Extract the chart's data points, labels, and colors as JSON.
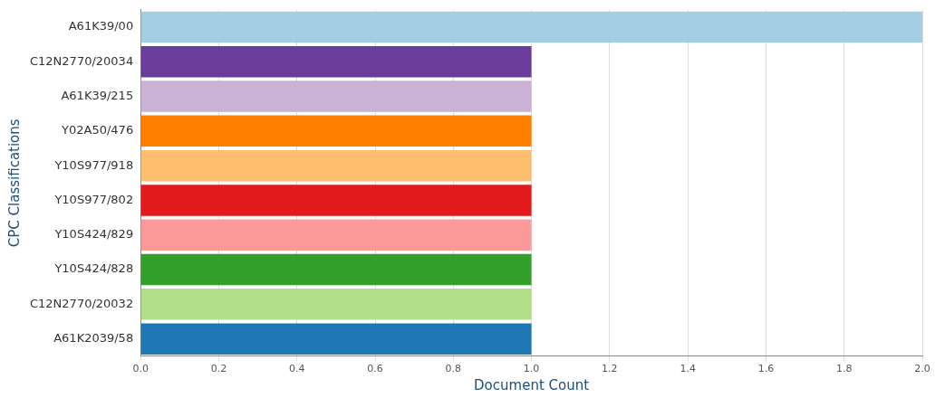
{
  "chart_data": {
    "type": "bar",
    "orientation": "horizontal",
    "xlabel": "Document Count",
    "ylabel": "CPC Classifications",
    "categories": [
      "A61K39/00",
      "C12N2770/20034",
      "A61K39/215",
      "Y02A50/476",
      "Y10S977/918",
      "Y10S977/802",
      "Y10S424/829",
      "Y10S424/828",
      "C12N2770/20032",
      "A61K2039/58"
    ],
    "values": [
      2,
      1,
      1,
      1,
      1,
      1,
      1,
      1,
      1,
      1
    ],
    "colors": [
      "#a6cee3",
      "#6a3d9a",
      "#cab2d6",
      "#ff7f00",
      "#fdbf6f",
      "#e31a1c",
      "#fb9a99",
      "#33a02c",
      "#b2df8a",
      "#1f78b4"
    ],
    "xlim": [
      0,
      2
    ],
    "xticks": [
      {
        "value": 0,
        "label": "0.0"
      },
      {
        "value": 0.2,
        "label": "0.2"
      },
      {
        "value": 0.4,
        "label": "0.4"
      },
      {
        "value": 0.6,
        "label": "0.6"
      },
      {
        "value": 0.8,
        "label": "0.8"
      },
      {
        "value": 1,
        "label": "1.0"
      },
      {
        "value": 1.2,
        "label": "1.2"
      },
      {
        "value": 1.4,
        "label": "1.4"
      },
      {
        "value": 1.6,
        "label": "1.6"
      },
      {
        "value": 1.8,
        "label": "1.8"
      },
      {
        "value": 2,
        "label": "2.0"
      }
    ],
    "grid": "x",
    "legend": false
  }
}
